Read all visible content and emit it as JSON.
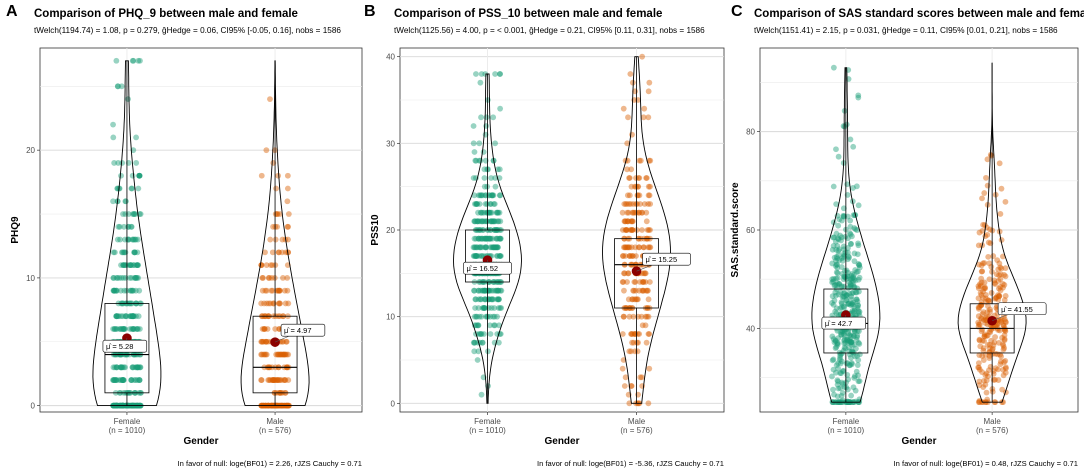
{
  "chart_data": [
    {
      "type": "violin-box-jitter",
      "letter": "A",
      "title": "Comparison of PHQ_9 between male and female",
      "subtitle": "tWelch(1194.74) = 1.08, p = 0.279, ĝHedge = 0.06, CI95% [-0.05, 0.16], nobs = 1586",
      "ylabel": "PHQ9",
      "xlabel": "Gender",
      "ylim": [
        -0.5,
        28
      ],
      "yticks": [
        0,
        10,
        20
      ],
      "footer": "In favor of null: loge(BF01) = 2.26, rJZS Cauchy = 0.71",
      "groups": [
        {
          "label": "Female",
          "n_label": "(n = 1010)",
          "mean": 5.28,
          "mean_label": "μ̂ = 5.28",
          "q1": 1,
          "median": 4,
          "q3": 8,
          "min": 0,
          "max": 27,
          "color": "#1b9e77"
        },
        {
          "label": "Male",
          "n_label": "(n = 576)",
          "mean": 4.97,
          "mean_label": "μ̂ = 4.97",
          "q1": 1,
          "median": 3,
          "q3": 7,
          "min": 0,
          "max": 27,
          "color": "#d95f02"
        }
      ]
    },
    {
      "type": "violin-box-jitter",
      "letter": "B",
      "title": "Comparison of PSS_10 between male and female",
      "subtitle": "tWelch(1125.56) = 4.00, p = < 0.001, ĝHedge = 0.21, CI95% [0.11, 0.31], nobs = 1586",
      "ylabel": "PSS10",
      "xlabel": "Gender",
      "ylim": [
        -1,
        41
      ],
      "yticks": [
        0,
        10,
        20,
        30,
        40
      ],
      "footer": "In favor of null: loge(BF01) = -5.36, rJZS Cauchy = 0.71",
      "groups": [
        {
          "label": "Female",
          "n_label": "(n = 1010)",
          "mean": 16.52,
          "mean_label": "μ̂ = 16.52",
          "q1": 14,
          "median": 16,
          "q3": 20,
          "min": 0,
          "max": 38,
          "color": "#1b9e77"
        },
        {
          "label": "Male",
          "n_label": "(n = 576)",
          "mean": 15.25,
          "mean_label": "μ̂ = 15.25",
          "q1": 11,
          "median": 16,
          "q3": 19,
          "min": 0,
          "max": 40,
          "color": "#d95f02"
        }
      ]
    },
    {
      "type": "violin-box-jitter",
      "letter": "C",
      "title": "Comparison of SAS standard scores between male and female",
      "subtitle": "tWelch(1151.41) = 2.15, p = 0.031, ĝHedge = 0.11, CI95% [0.01, 0.21], nobs = 1586",
      "ylabel": "SAS.standard.score",
      "xlabel": "Gender",
      "ylim": [
        23,
        97
      ],
      "yticks": [
        40,
        60,
        80
      ],
      "footer": "In favor of null: loge(BF01) = 0.48, rJZS Cauchy = 0.71",
      "groups": [
        {
          "label": "Female",
          "n_label": "(n = 1010)",
          "mean": 42.7,
          "mean_label": "μ̂ = 42.7",
          "q1": 35,
          "median": 41,
          "q3": 48,
          "min": 25,
          "max": 93,
          "color": "#1b9e77"
        },
        {
          "label": "Male",
          "n_label": "(n = 576)",
          "mean": 41.55,
          "mean_label": "μ̂ = 41.55",
          "q1": 35,
          "median": 40,
          "q3": 45,
          "min": 25,
          "max": 94,
          "color": "#d95f02"
        }
      ]
    }
  ]
}
